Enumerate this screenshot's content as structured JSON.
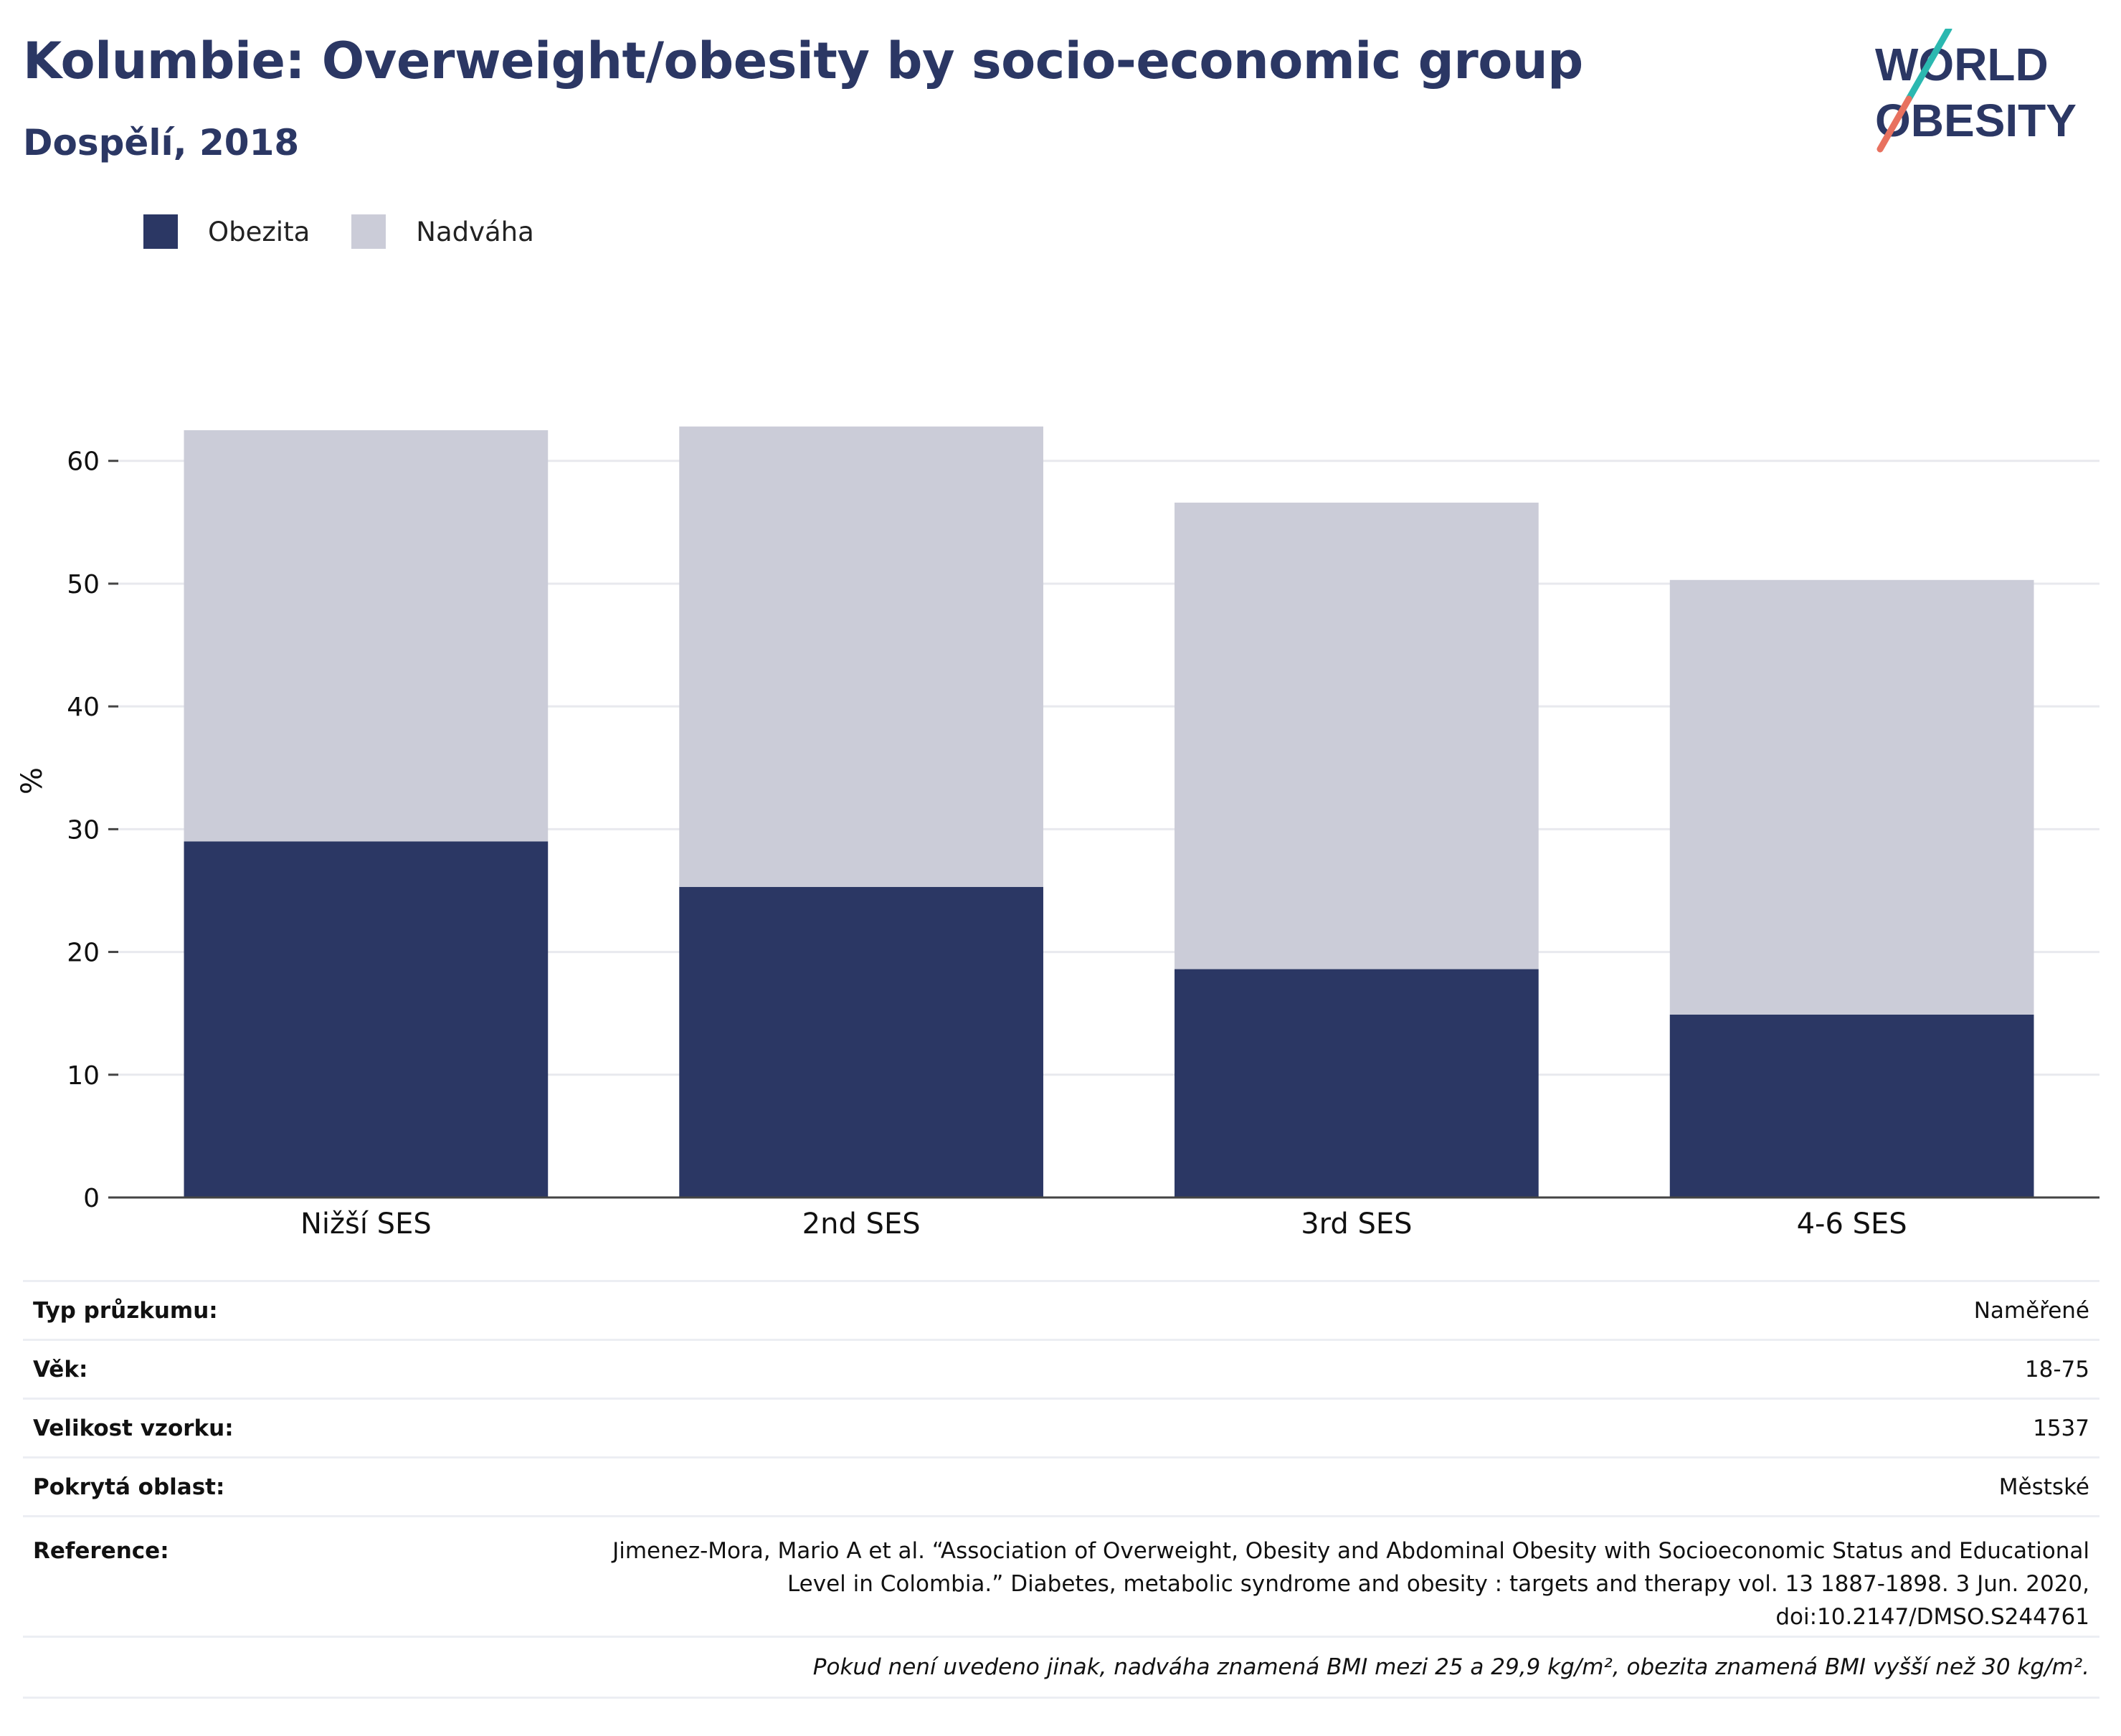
{
  "header": {
    "title": "Kolumbie: Overweight/obesity by socio-economic group",
    "subtitle": "Dospělí, 2018"
  },
  "logo": {
    "line1": "WORLD",
    "line2": "OBESITY"
  },
  "colors": {
    "obesity": "#2b3764",
    "overweight": "#cbccd8",
    "text_dark": "#2b3764",
    "logo_teal": "#2bb8b0",
    "logo_coral": "#e8715f"
  },
  "chart_data": {
    "type": "bar",
    "stacked": true,
    "categories": [
      "Nižší SES",
      "2nd SES",
      "3rd SES",
      "4-6 SES"
    ],
    "series": [
      {
        "name": "Obezita",
        "values": [
          29.0,
          25.3,
          18.6,
          14.9
        ]
      },
      {
        "name": "Nadváha",
        "values": [
          33.5,
          37.5,
          38.0,
          35.4
        ]
      }
    ],
    "ylabel": "%",
    "ylim": [
      0,
      66
    ],
    "yticks": [
      0,
      10,
      20,
      30,
      40,
      50,
      60
    ],
    "grid": true,
    "legend_position": "top-left"
  },
  "info": {
    "rows": [
      {
        "label": "Typ průzkumu:",
        "value": "Naměřené"
      },
      {
        "label": "Věk:",
        "value": "18-75"
      },
      {
        "label": "Velikost vzorku:",
        "value": "1537"
      },
      {
        "label": "Pokrytá oblast:",
        "value": "Městské"
      },
      {
        "label": "Reference:",
        "value": "Jimenez-Mora, Mario A et al. “Association of Overweight, Obesity and Abdominal Obesity with Socioeconomic Status and Educational Level in Colombia.” Diabetes, metabolic syndrome and obesity : targets and therapy vol. 13 1887-1898. 3 Jun. 2020, doi:10.2147/DMSO.S244761"
      }
    ],
    "note": "Pokud není uvedeno jinak, nadváha znamená BMI mezi 25 a 29,9 kg/m², obezita znamená BMI vyšší než 30 kg/m²."
  }
}
